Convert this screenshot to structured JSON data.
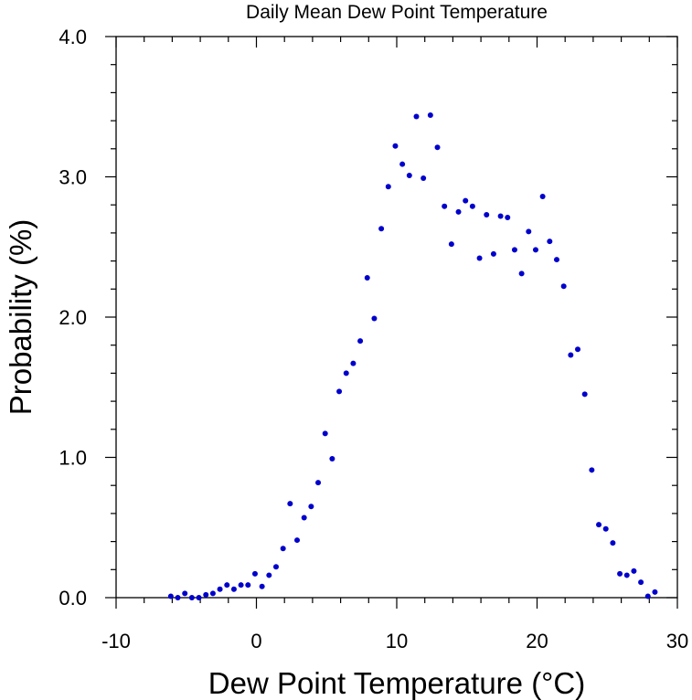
{
  "chart_data": {
    "type": "scatter",
    "title": "Daily Mean Dew Point Temperature",
    "xlabel": "Dew Point Temperature (°C)",
    "ylabel": "Probability (%)",
    "xlim": [
      -10,
      30
    ],
    "ylim": [
      0,
      4
    ],
    "xticks": [
      -10,
      0,
      10,
      20,
      30
    ],
    "xtick_labels": [
      "-10",
      "0",
      "10",
      "20",
      "30"
    ],
    "yticks": [
      0,
      1,
      2,
      3,
      4
    ],
    "ytick_labels": [
      "0.0",
      "1.0",
      "2.0",
      "3.0",
      "4.0"
    ],
    "marker_color": "#0000cc",
    "grid": false,
    "series": [
      {
        "x": [
          -6.1,
          -5.6,
          -5.1,
          -4.6,
          -4.1,
          -3.6,
          -3.1,
          -2.6,
          -2.1,
          -1.6,
          -1.1,
          -0.6,
          -0.1,
          0.4,
          0.9,
          1.4,
          1.9,
          2.4,
          2.9,
          3.4,
          3.9,
          4.4,
          4.9,
          5.4,
          5.9,
          6.4,
          6.9,
          7.4,
          7.9,
          8.4,
          8.9,
          9.4,
          9.9,
          10.4,
          10.9,
          11.4,
          11.9,
          12.4,
          12.9,
          13.4,
          13.9,
          14.4,
          14.9,
          15.4,
          15.9,
          16.4,
          16.9,
          17.4,
          17.9,
          18.4,
          18.9,
          19.4,
          19.9,
          20.4,
          20.9,
          21.4,
          21.9,
          22.4,
          22.9,
          23.4,
          23.9,
          24.4,
          24.9,
          25.4,
          25.9,
          26.4,
          26.9,
          27.4,
          27.9,
          28.4
        ],
        "y": [
          0.01,
          0.0,
          0.03,
          0.0,
          0.0,
          0.02,
          0.03,
          0.06,
          0.09,
          0.06,
          0.09,
          0.09,
          0.17,
          0.08,
          0.16,
          0.22,
          0.35,
          0.67,
          0.41,
          0.57,
          0.65,
          0.82,
          1.17,
          0.99,
          1.47,
          1.6,
          1.67,
          1.83,
          2.28,
          1.99,
          2.63,
          2.93,
          3.22,
          3.09,
          3.01,
          3.43,
          2.99,
          3.44,
          3.21,
          2.79,
          2.52,
          2.75,
          2.83,
          2.79,
          2.42,
          2.73,
          2.45,
          2.72,
          2.71,
          2.48,
          2.31,
          2.61,
          2.48,
          2.86,
          2.54,
          2.41,
          2.22,
          1.73,
          1.77,
          1.45,
          0.91,
          0.52,
          0.49,
          0.39,
          0.17,
          0.16,
          0.19,
          0.11,
          0.01,
          0.04
        ]
      }
    ]
  }
}
